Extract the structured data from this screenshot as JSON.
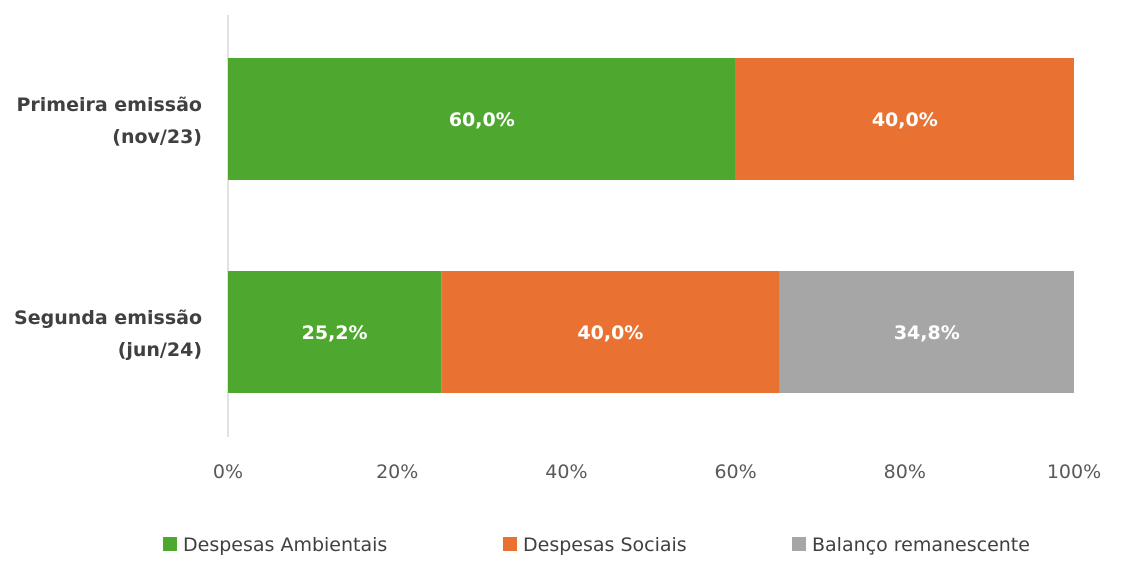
{
  "chart_data": {
    "type": "bar",
    "orientation": "horizontal",
    "stacked": "100%",
    "title": "",
    "xlabel": "",
    "ylabel": "",
    "categories": [
      "Primeira emissão\n(nov/23)",
      "Segunda emissão\n(jun/24)"
    ],
    "series": [
      {
        "name": "Despesas Ambientais",
        "color": "#4ea72e",
        "values": [
          60.0,
          25.2
        ],
        "labels": [
          "60,0%",
          "25,2%"
        ]
      },
      {
        "name": "Despesas Sociais",
        "color": "#e97132",
        "values": [
          40.0,
          40.0
        ],
        "labels": [
          "40,0%",
          "40,0%"
        ]
      },
      {
        "name": "Balanço remanescente",
        "color": "#a6a6a6",
        "values": [
          0,
          34.8
        ],
        "labels": [
          "",
          "34,8%"
        ]
      }
    ],
    "xlim": [
      0,
      100
    ],
    "xticks": [
      "0%",
      "20%",
      "40%",
      "60%",
      "80%",
      "100%"
    ],
    "grid": false,
    "legend_position": "bottom"
  }
}
